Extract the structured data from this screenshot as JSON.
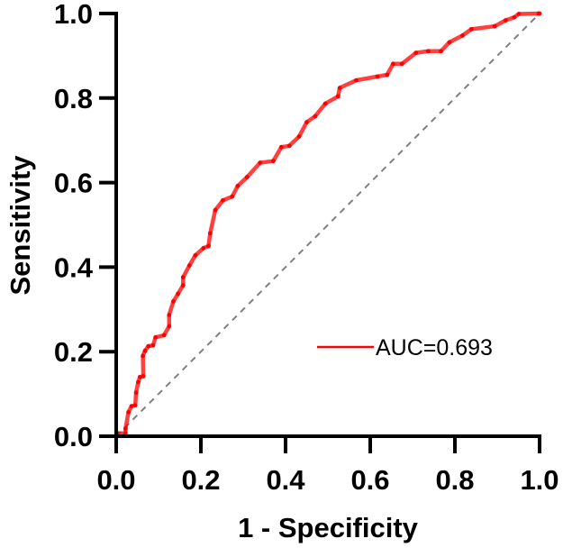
{
  "chart_data": {
    "type": "line",
    "title": "",
    "xlabel": "1 - Specificity",
    "ylabel": "Sensitivity",
    "xlim": [
      0,
      1
    ],
    "ylim": [
      0,
      1
    ],
    "xticks": [
      "0.0",
      "0.2",
      "0.4",
      "0.6",
      "0.8",
      "1.0"
    ],
    "yticks": [
      "0.0",
      "0.2",
      "0.4",
      "0.6",
      "0.8",
      "1.0"
    ],
    "grid": false,
    "legend_position": "center-right",
    "series": [
      {
        "name": "AUC=0.693",
        "color": "#ff0000",
        "x": [
          0,
          0.003,
          0.022,
          0.022,
          0.029,
          0.036,
          0.045,
          0.047,
          0.052,
          0.056,
          0.064,
          0.063,
          0.068,
          0.076,
          0.087,
          0.093,
          0.113,
          0.125,
          0.125,
          0.135,
          0.146,
          0.158,
          0.158,
          0.173,
          0.187,
          0.206,
          0.218,
          0.222,
          0.234,
          0.252,
          0.274,
          0.287,
          0.309,
          0.34,
          0.371,
          0.39,
          0.409,
          0.432,
          0.45,
          0.47,
          0.494,
          0.524,
          0.528,
          0.567,
          0.617,
          0.64,
          0.654,
          0.675,
          0.708,
          0.737,
          0.767,
          0.787,
          0.818,
          0.839,
          0.894,
          0.92,
          0.94,
          0.951,
          0.998,
          1.0
        ],
        "y": [
          0,
          0.007,
          0.007,
          0.018,
          0.057,
          0.071,
          0.073,
          0.103,
          0.128,
          0.14,
          0.142,
          0.19,
          0.202,
          0.213,
          0.215,
          0.234,
          0.239,
          0.26,
          0.287,
          0.319,
          0.337,
          0.357,
          0.376,
          0.404,
          0.428,
          0.445,
          0.45,
          0.48,
          0.535,
          0.558,
          0.567,
          0.592,
          0.613,
          0.647,
          0.651,
          0.684,
          0.687,
          0.709,
          0.743,
          0.757,
          0.787,
          0.804,
          0.824,
          0.842,
          0.851,
          0.855,
          0.881,
          0.881,
          0.907,
          0.911,
          0.911,
          0.932,
          0.948,
          0.963,
          0.97,
          0.984,
          0.991,
          0.999,
          1.0,
          1.0
        ]
      },
      {
        "color": "#808080",
        "style": "dashed",
        "x": [
          0,
          1
        ],
        "y": [
          0,
          1
        ]
      }
    ]
  }
}
